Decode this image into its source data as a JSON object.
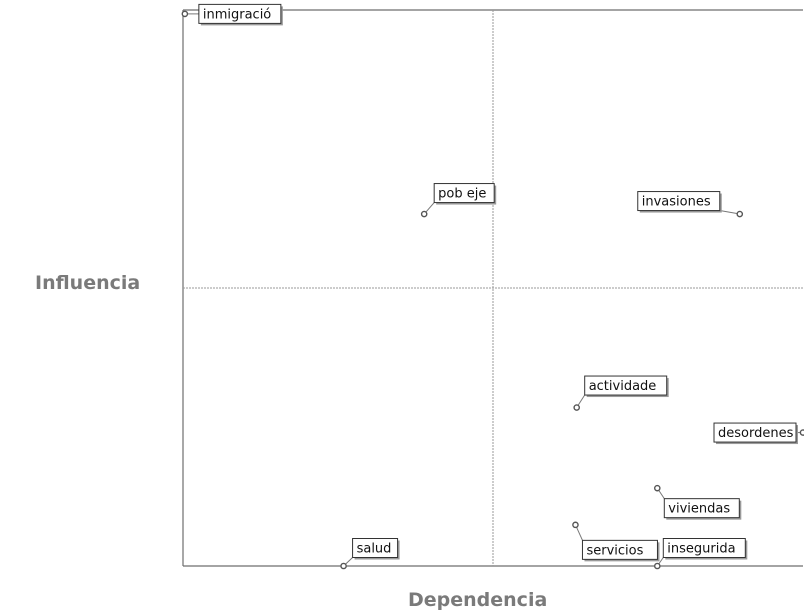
{
  "chart_data": {
    "type": "scatter",
    "title": "",
    "xlabel": "Dependencia",
    "ylabel": "Influencia",
    "xlim": [
      0,
      100
    ],
    "ylim": [
      0,
      100
    ],
    "grid": false,
    "quadrant_dividers": {
      "x": 50,
      "y": 50
    },
    "colors": {
      "axis": "#6e6e6e",
      "divider": "#9a9a9a",
      "marker": "#555555",
      "label_border": "#333333",
      "label_shadow": "#9a9a9a",
      "axis_title": "#7a7a7a"
    },
    "points": [
      {
        "label": "inmigració",
        "x": 0.3,
        "y": 99.3
      },
      {
        "label": "pob eje",
        "x": 38.9,
        "y": 63.3
      },
      {
        "label": "invasiones",
        "x": 89.8,
        "y": 63.3
      },
      {
        "label": "actividade",
        "x": 63.5,
        "y": 28.5
      },
      {
        "label": "desordenes",
        "x": 100,
        "y": 24.0
      },
      {
        "label": "viviendas",
        "x": 76.5,
        "y": 14.0
      },
      {
        "label": "servicios",
        "x": 63.3,
        "y": 7.4
      },
      {
        "label": "inseguridad",
        "display_label": "insegurida",
        "x": 76.5,
        "y": 0.0
      },
      {
        "label": "salud",
        "x": 25.9,
        "y": 0.0
      }
    ]
  }
}
